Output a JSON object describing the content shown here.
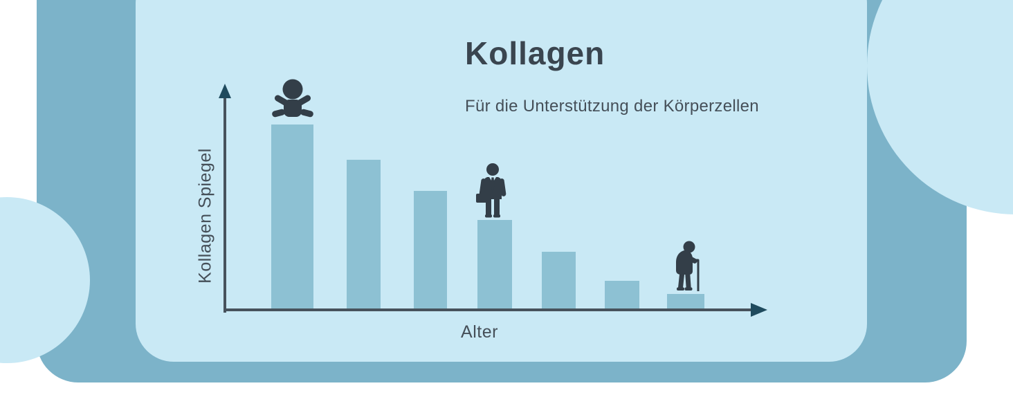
{
  "header": {
    "title": "Kollagen",
    "subtitle": "Für die Unterstützung der Körperzellen"
  },
  "chart_data": {
    "type": "bar",
    "title": "Kollagen",
    "xlabel": "Alter",
    "ylabel": "Kollagen Spiegel",
    "values": [
      100,
      81,
      64,
      48,
      31,
      15,
      8
    ],
    "value_unit": "percent of maximum (no numeric labels shown)",
    "bar_count": 7,
    "markers": [
      {
        "bar": 1,
        "icon": "baby-icon"
      },
      {
        "bar": 4,
        "icon": "businessman-icon"
      },
      {
        "bar": 7,
        "icon": "elderly-icon"
      }
    ],
    "axis_arrows": true,
    "gridlines": false,
    "tick_labels": false,
    "legend": false
  },
  "colors": {
    "background": "#ffffff",
    "card": "#7cb3c9",
    "panel": "#c9e9f5",
    "bar": "#8dc1d3",
    "axis_line": "#47525c",
    "axis_arrow": "#1f4b5e",
    "icon": "#333e48",
    "title_text": "#3a454f",
    "subtitle_text": "#454f58"
  }
}
